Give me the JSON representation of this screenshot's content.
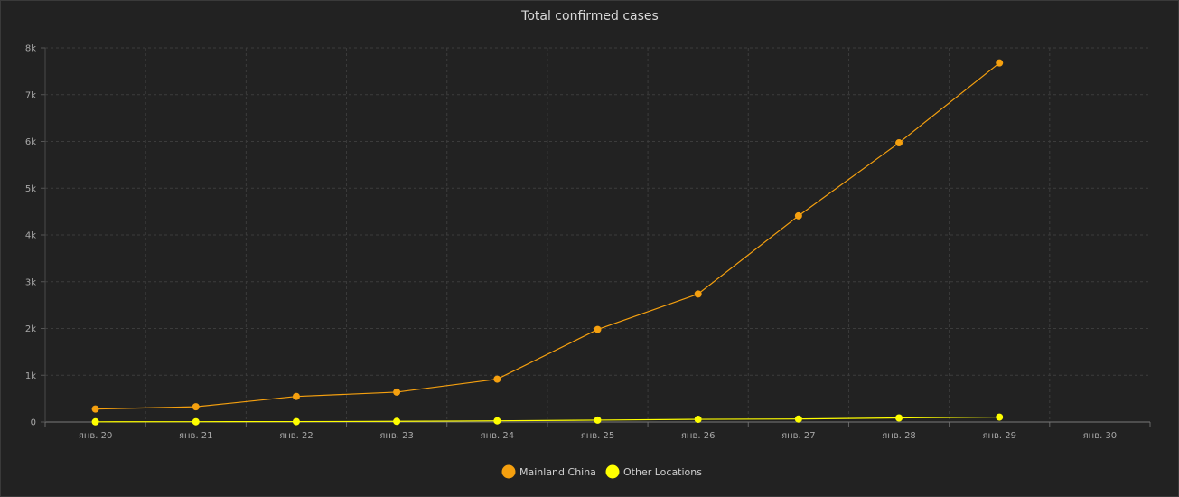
{
  "chart_data": {
    "type": "line",
    "title": "Total confirmed cases",
    "categories": [
      "янв. 20",
      "янв. 21",
      "янв. 22",
      "янв. 23",
      "янв. 24",
      "янв. 25",
      "янв. 26",
      "янв. 27",
      "янв. 28",
      "янв. 29",
      "янв. 30"
    ],
    "y_ticks": [
      "0",
      "1k",
      "2k",
      "3k",
      "4k",
      "5k",
      "6k",
      "7k",
      "8k"
    ],
    "ylim": [
      0,
      8000
    ],
    "grid": true,
    "legend_position": "bottom",
    "series": [
      {
        "name": "Mainland China",
        "color": "#f5a00f",
        "values": [
          278,
          326,
          547,
          639,
          916,
          1979,
          2737,
          4409,
          5970,
          7678,
          null
        ]
      },
      {
        "name": "Other Locations",
        "color": "#ffff00",
        "values": [
          4,
          6,
          8,
          14,
          25,
          40,
          57,
          64,
          87,
          105,
          null
        ]
      }
    ]
  }
}
